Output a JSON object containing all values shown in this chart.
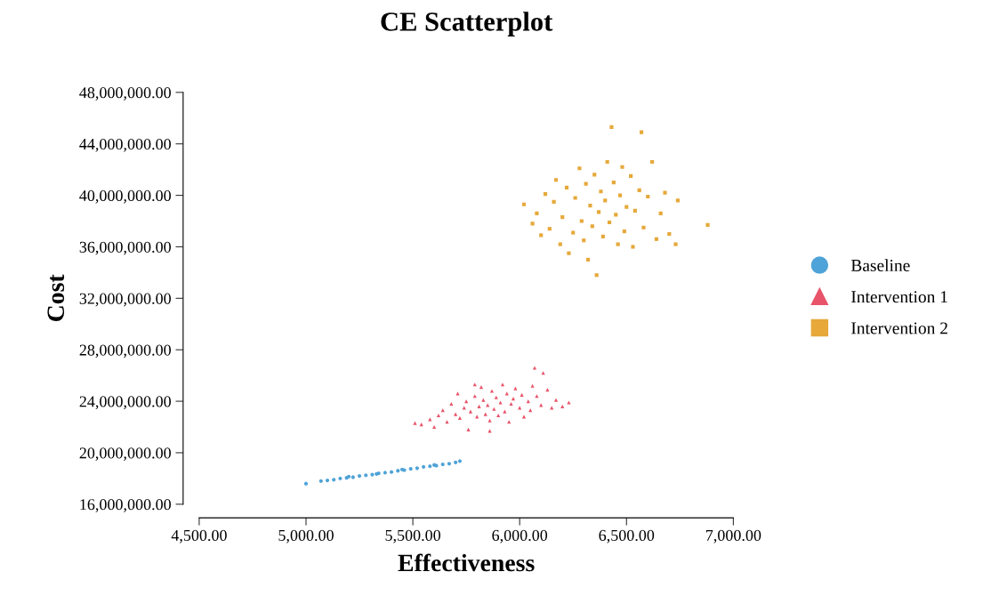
{
  "chart_data": {
    "type": "scatter",
    "title": "CE Scatterplot",
    "xlabel": "Effectiveness",
    "ylabel": "Cost",
    "xlim": [
      4500,
      7000
    ],
    "xticks": [
      {
        "value": 4500,
        "label": "4,500.00"
      },
      {
        "value": 5000,
        "label": "5,000.00"
      },
      {
        "value": 5500,
        "label": "5,500.00"
      },
      {
        "value": 6000,
        "label": "6,000.00"
      },
      {
        "value": 6500,
        "label": "6,500.00"
      },
      {
        "value": 7000,
        "label": "7,000.00"
      }
    ],
    "ylim": [
      16000000,
      48000000
    ],
    "yticks": [
      {
        "value": 16000000,
        "label": "16,000,000.00"
      },
      {
        "value": 20000000,
        "label": "20,000,000.00"
      },
      {
        "value": 24000000,
        "label": "24,000,000.00"
      },
      {
        "value": 28000000,
        "label": "28,000,000.00"
      },
      {
        "value": 32000000,
        "label": "32,000,000.00"
      },
      {
        "value": 36000000,
        "label": "36,000,000.00"
      },
      {
        "value": 40000000,
        "label": "40,000,000.00"
      },
      {
        "value": 44000000,
        "label": "44,000,000.00"
      },
      {
        "value": 48000000,
        "label": "48,000,000.00"
      }
    ],
    "grid": false,
    "legend": "right",
    "series": [
      {
        "name": "Baseline",
        "color": "#4ea3d8",
        "marker": "circle",
        "x": [
          5000,
          5070,
          5100,
          5130,
          5160,
          5190,
          5200,
          5220,
          5250,
          5280,
          5310,
          5330,
          5340,
          5370,
          5400,
          5430,
          5450,
          5460,
          5490,
          5520,
          5550,
          5580,
          5600,
          5610,
          5640,
          5670,
          5700,
          5720
        ],
        "values": [
          17600000,
          17800000,
          17850000,
          17900000,
          18000000,
          18050000,
          18150000,
          18100000,
          18200000,
          18250000,
          18300000,
          18350000,
          18400000,
          18450000,
          18500000,
          18600000,
          18700000,
          18650000,
          18750000,
          18800000,
          18900000,
          18950000,
          19050000,
          19000000,
          19100000,
          19150000,
          19250000,
          19350000
        ]
      },
      {
        "name": "Intervention 1",
        "color": "#e8546a",
        "marker": "triangle",
        "x": [
          5510,
          5540,
          5580,
          5600,
          5620,
          5640,
          5660,
          5680,
          5700,
          5710,
          5720,
          5740,
          5750,
          5760,
          5770,
          5790,
          5800,
          5810,
          5820,
          5830,
          5840,
          5850,
          5860,
          5870,
          5880,
          5890,
          5900,
          5910,
          5920,
          5930,
          5940,
          5950,
          5960,
          5970,
          5980,
          6000,
          6010,
          6020,
          6040,
          6050,
          6060,
          6070,
          6080,
          6100,
          6110,
          6130,
          6150,
          6170,
          6200,
          6230,
          5860,
          5790
        ],
        "values": [
          22300000,
          22200000,
          22600000,
          22000000,
          22900000,
          23300000,
          22400000,
          23800000,
          23000000,
          24600000,
          22700000,
          23500000,
          24000000,
          21800000,
          23200000,
          24400000,
          22800000,
          23600000,
          25100000,
          24100000,
          23000000,
          23700000,
          22500000,
          24800000,
          23400000,
          24300000,
          22900000,
          23900000,
          25300000,
          23200000,
          24600000,
          22400000,
          23800000,
          24200000,
          25000000,
          23500000,
          24500000,
          22800000,
          24000000,
          23300000,
          25200000,
          26600000,
          24400000,
          23700000,
          26200000,
          24900000,
          23500000,
          24100000,
          23600000,
          23900000,
          21700000,
          25300000
        ]
      },
      {
        "name": "Intervention 2",
        "color": "#e6a93a",
        "marker": "square",
        "x": [
          6020,
          6060,
          6080,
          6100,
          6120,
          6140,
          6160,
          6170,
          6190,
          6200,
          6220,
          6230,
          6250,
          6260,
          6280,
          6290,
          6300,
          6310,
          6320,
          6330,
          6340,
          6350,
          6360,
          6370,
          6380,
          6390,
          6400,
          6410,
          6420,
          6430,
          6440,
          6450,
          6460,
          6470,
          6480,
          6490,
          6500,
          6520,
          6530,
          6540,
          6560,
          6570,
          6580,
          6600,
          6620,
          6640,
          6660,
          6680,
          6700,
          6730,
          6740,
          6880
        ],
        "values": [
          39300000,
          37800000,
          38600000,
          36900000,
          40100000,
          37400000,
          39500000,
          41200000,
          36200000,
          38300000,
          40600000,
          35500000,
          37100000,
          39800000,
          42100000,
          38000000,
          36500000,
          40900000,
          35000000,
          39200000,
          37600000,
          41600000,
          33800000,
          38700000,
          40300000,
          36800000,
          39600000,
          42600000,
          37900000,
          45300000,
          41000000,
          38500000,
          36200000,
          40000000,
          42200000,
          37200000,
          39100000,
          41500000,
          36000000,
          38800000,
          40400000,
          44900000,
          37500000,
          39900000,
          42600000,
          36600000,
          38600000,
          40200000,
          37000000,
          36200000,
          39600000,
          37700000
        ]
      }
    ]
  }
}
